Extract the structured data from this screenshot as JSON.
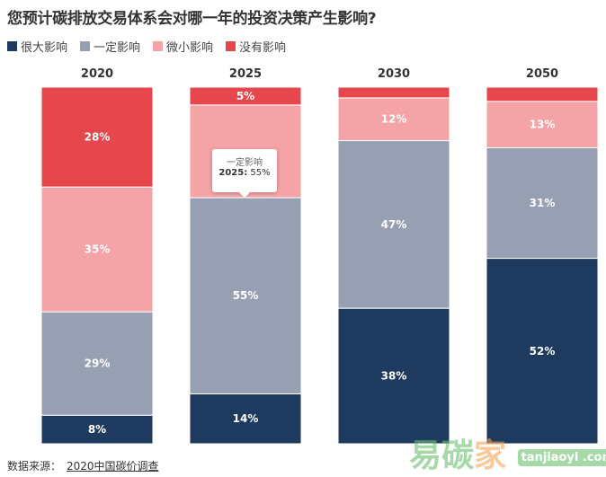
{
  "chart_data": {
    "type": "bar",
    "stacked": true,
    "title": "您预计碳排放交易体系会对哪一年的投资决策产生影响?",
    "categories": [
      "2020",
      "2025",
      "2030",
      "2050"
    ],
    "ylim": [
      0,
      100
    ],
    "grid": false,
    "legend_position": "top-left",
    "series": [
      {
        "name": "很大影响",
        "color": "#1f3a5f",
        "values": [
          8,
          14,
          38,
          52
        ],
        "labels": [
          "8%",
          "14%",
          "38%",
          "52%"
        ]
      },
      {
        "name": "一定影响",
        "color": "#97a0b3",
        "values": [
          29,
          55,
          47,
          31
        ],
        "labels": [
          "29%",
          "55%",
          "47%",
          "31%"
        ]
      },
      {
        "name": "微小影响",
        "color": "#f4a4a6",
        "values": [
          35,
          26,
          12,
          13
        ],
        "labels": [
          "35%",
          "",
          "12%",
          "13%"
        ]
      },
      {
        "name": "没有影响",
        "color": "#e5474d",
        "values": [
          28,
          5,
          3,
          4
        ],
        "labels": [
          "28%",
          "5%",
          "",
          ""
        ]
      }
    ]
  },
  "tooltip": {
    "series": "一定影响",
    "category": "2025:",
    "value": "55%"
  },
  "source": {
    "label": "数据来源：",
    "link": "2020中国碳价调查"
  },
  "watermark": {
    "text1": "易碳",
    "text2": "家",
    "site": "tanjiaoyi .com"
  }
}
